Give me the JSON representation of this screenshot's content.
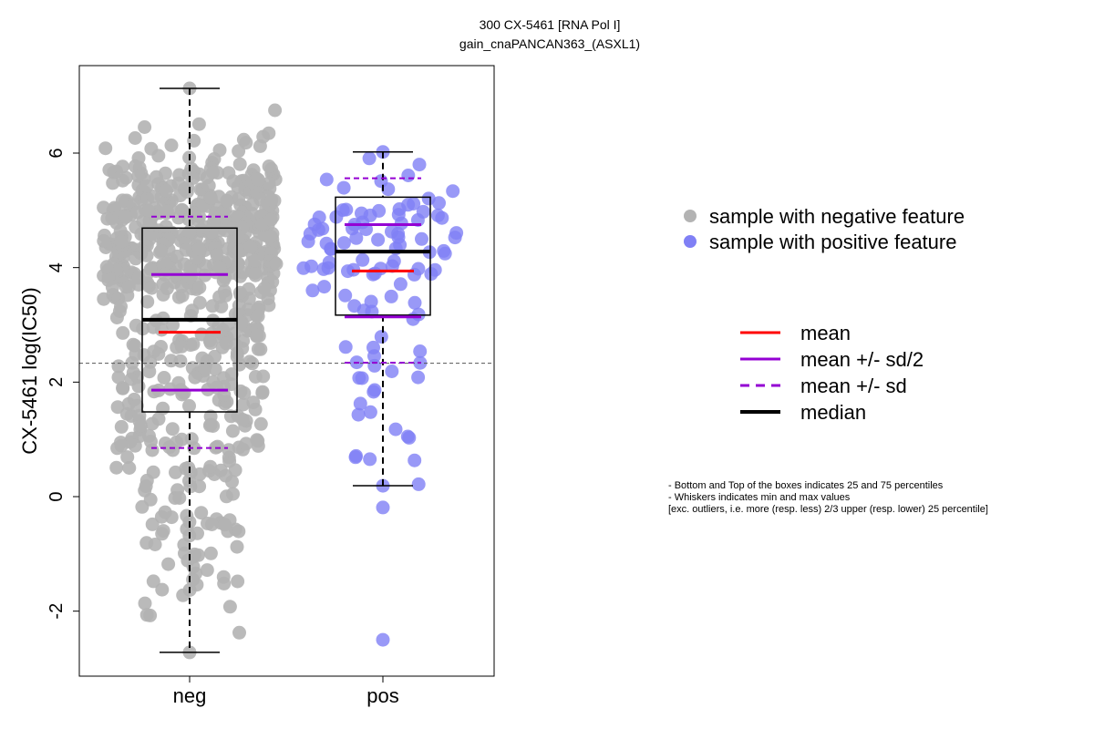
{
  "chart_data": {
    "type": "scatter",
    "title": "300 CX-5461 [RNA Pol I]",
    "subtitle": "gain_cnaPANCAN363_(ASXL1)",
    "ylabel": "CX-5461 log(IC50)",
    "xlabel": "",
    "categories": [
      "neg",
      "pos"
    ],
    "yticks": [
      -2,
      0,
      2,
      4,
      6
    ],
    "ylim": [
      -3.1,
      7.6
    ],
    "grid": false,
    "reference_line_y": 2.33,
    "legend_position": "right",
    "groups": [
      {
        "category": "neg",
        "name": "sample with negative feature",
        "color": "#b3b3b3",
        "n_points": 700,
        "box": {
          "q1": 1.48,
          "median": 3.09,
          "q3": 4.69,
          "whisker_low": -2.72,
          "whisker_high": 7.13
        },
        "mean": 2.87,
        "mean_minus_half_sd": 1.86,
        "mean_plus_half_sd": 3.88,
        "mean_minus_sd": 0.85,
        "mean_plus_sd": 4.89
      },
      {
        "category": "pos",
        "name": "sample with positive feature",
        "color": "#8080f5",
        "n_points": 110,
        "box": {
          "q1": 3.17,
          "median": 4.28,
          "q3": 5.23,
          "whisker_low": 0.19,
          "whisker_high": 6.02
        },
        "mean": 3.94,
        "mean_minus_half_sd": 3.14,
        "mean_plus_half_sd": 4.75,
        "mean_minus_sd": 2.34,
        "mean_plus_sd": 5.56,
        "outliers": [
          -0.19,
          -2.5
        ]
      }
    ],
    "line_legend": [
      {
        "label": "mean",
        "color": "#ff0000",
        "style": "solid"
      },
      {
        "label": "mean +/- sd/2",
        "color": "#9400d3",
        "style": "solid"
      },
      {
        "label": "mean +/- sd",
        "color": "#9400d3",
        "style": "dashed"
      },
      {
        "label": "median",
        "color": "#000000",
        "style": "solid"
      }
    ],
    "notes": [
      "- Bottom and Top of the boxes indicates 25 and 75 percentiles",
      "- Whiskers indicates min and max values",
      "[exc. outliers, i.e. more (resp. less) 2/3 upper (resp. lower) 25 percentile]"
    ]
  }
}
